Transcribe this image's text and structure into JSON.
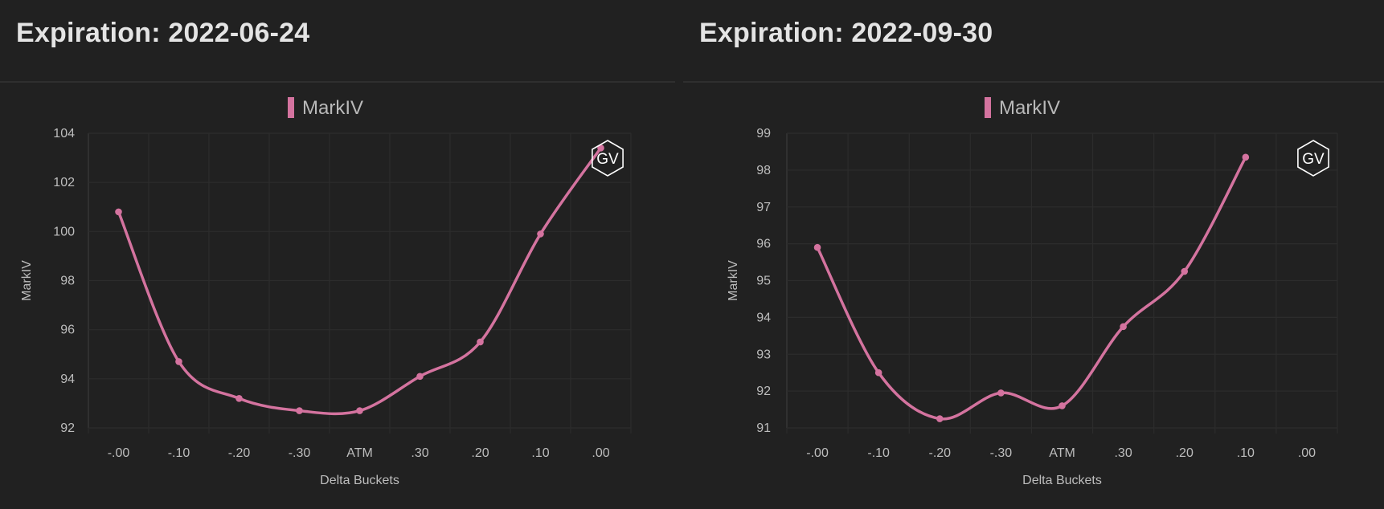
{
  "series_color": "#d4739f",
  "watermark_text": "GV",
  "panels": [
    {
      "title": "Expiration: 2022-06-24",
      "chart_data": {
        "type": "line",
        "legend": [
          "MarkIV"
        ],
        "legend_position": "top-center",
        "categories": [
          "-.00",
          "-.10",
          "-.20",
          "-.30",
          "ATM",
          ".30",
          ".20",
          ".10",
          ".00"
        ],
        "series": [
          {
            "name": "MarkIV",
            "values": [
              100.8,
              94.7,
              93.2,
              92.7,
              92.7,
              94.1,
              95.5,
              99.9,
              103.4
            ]
          }
        ],
        "xlabel": "Delta Buckets",
        "ylabel": "MarkIV",
        "ylim": [
          92,
          104
        ],
        "yticks": [
          92,
          94,
          96,
          98,
          100,
          102,
          104
        ],
        "grid": true
      }
    },
    {
      "title": "Expiration: 2022-09-30",
      "chart_data": {
        "type": "line",
        "legend": [
          "MarkIV"
        ],
        "legend_position": "top-center",
        "categories": [
          "-.00",
          "-.10",
          "-.20",
          "-.30",
          "ATM",
          ".30",
          ".20",
          ".10",
          ".00"
        ],
        "series": [
          {
            "name": "MarkIV",
            "values": [
              95.9,
              92.5,
              91.25,
              91.95,
              91.6,
              93.75,
              95.25,
              98.35,
              null
            ]
          }
        ],
        "xlabel": "Delta Buckets",
        "ylabel": "MarkIV",
        "ylim": [
          91,
          99
        ],
        "yticks": [
          91,
          92,
          93,
          94,
          95,
          96,
          97,
          98,
          99
        ],
        "grid": true
      }
    }
  ]
}
